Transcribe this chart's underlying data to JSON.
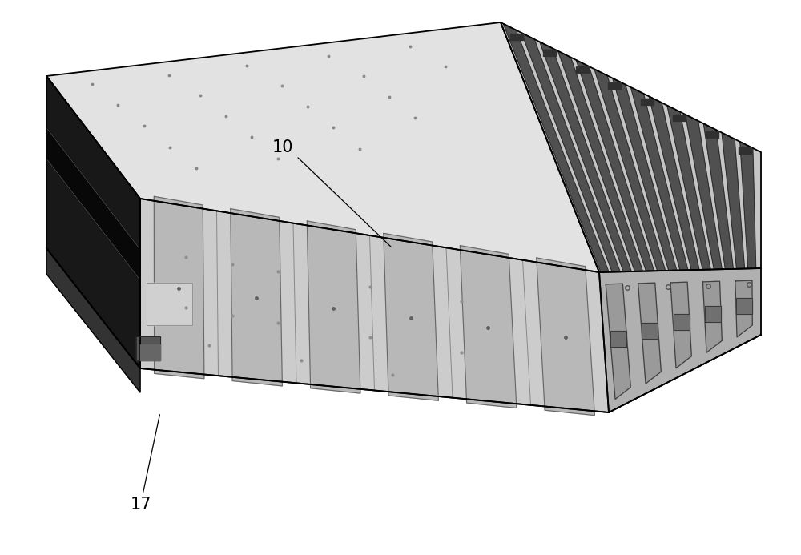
{
  "background_color": "#ffffff",
  "fig_width": 10.0,
  "fig_height": 6.93,
  "dpi": 100,
  "line_color": "#000000",
  "line_width": 1.3,
  "annotation_fontsize": 15,
  "top_face_color": "#e0e0e0",
  "vent_face_color": "#c8c8c8",
  "right_face_color": "#b8b8b8",
  "front_face_color": "#cccccc",
  "left_face_color": "#111111",
  "slot_color": "#444444",
  "label_10": "10",
  "label_17": "17"
}
